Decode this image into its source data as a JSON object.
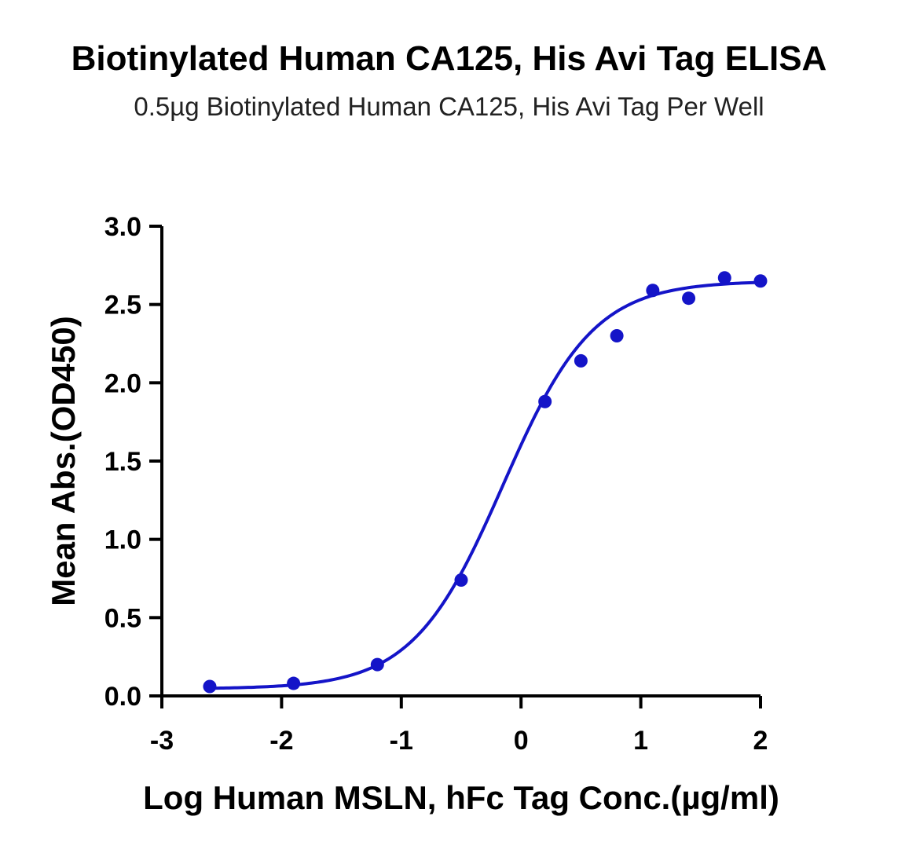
{
  "chart_data": {
    "type": "scatter",
    "title": "Biotinylated Human CA125, His Avi Tag ELISA",
    "subtitle": "0.5µg Biotinylated Human CA125, His Avi Tag Per Well",
    "xlabel": "Log Human MSLN, hFc Tag Conc.(µg/ml)",
    "ylabel": "Mean Abs.(OD450)",
    "xlim": [
      -3,
      2
    ],
    "ylim": [
      0,
      3
    ],
    "xticks": [
      "-3",
      "-2",
      "-1",
      "0",
      "1",
      "2"
    ],
    "yticks": [
      "0.0",
      "0.5",
      "1.0",
      "1.5",
      "2.0",
      "2.5",
      "3.0"
    ],
    "grid": false,
    "legend": "none",
    "color": "#1414C8",
    "series": [
      {
        "points": [
          {
            "x": -2.6,
            "y": 0.06
          },
          {
            "x": -1.9,
            "y": 0.08
          },
          {
            "x": -1.2,
            "y": 0.2
          },
          {
            "x": -0.5,
            "y": 0.74
          },
          {
            "x": 0.2,
            "y": 1.88
          },
          {
            "x": 0.5,
            "y": 2.14
          },
          {
            "x": 0.8,
            "y": 2.3
          },
          {
            "x": 1.1,
            "y": 2.59
          },
          {
            "x": 1.4,
            "y": 2.54
          },
          {
            "x": 1.7,
            "y": 2.67
          },
          {
            "x": 2.0,
            "y": 2.65
          }
        ],
        "fit": {
          "model": "4PL",
          "bottom": 0.045,
          "top": 2.65,
          "logEC50": -0.15,
          "hill": 1.15
        }
      }
    ]
  }
}
